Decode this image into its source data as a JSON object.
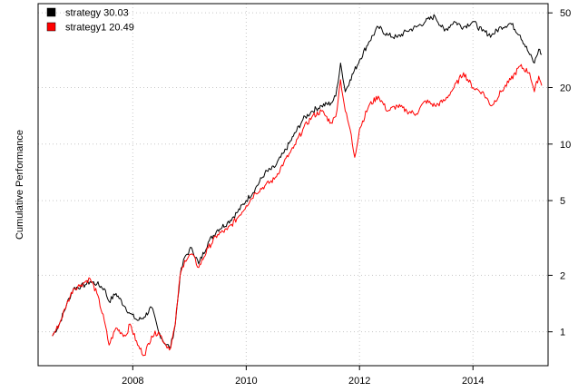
{
  "chart_data": {
    "type": "line",
    "title": "",
    "xlabel": "",
    "ylabel": "Cumulative Performance",
    "y_scale": "log",
    "xlim": [
      "2006-05-01",
      "2015-04-30"
    ],
    "ylim": [
      0.66,
      56
    ],
    "y_axis_side": "right",
    "grid": true,
    "legend_position": "top-left",
    "x_ticks": [
      {
        "date": "2008-01-01",
        "label": "2008"
      },
      {
        "date": "2010-01-01",
        "label": "2010"
      },
      {
        "date": "2012-01-01",
        "label": "2012"
      },
      {
        "date": "2014-01-01",
        "label": "2014"
      }
    ],
    "y_ticks": [
      {
        "value": 1,
        "label": "1"
      },
      {
        "value": 2,
        "label": "2"
      },
      {
        "value": 5,
        "label": "5"
      },
      {
        "value": 10,
        "label": "10"
      },
      {
        "value": 20,
        "label": "20"
      },
      {
        "value": 50,
        "label": "50"
      }
    ],
    "series": [
      {
        "name": "strategy",
        "legend_label": "strategy 30.03",
        "color": "#000000",
        "points": [
          [
            "2006-08-01",
            0.95
          ],
          [
            "2006-09-15",
            1.1
          ],
          [
            "2006-11-01",
            1.4
          ],
          [
            "2006-12-15",
            1.7
          ],
          [
            "2007-02-01",
            1.75
          ],
          [
            "2007-03-01",
            1.78
          ],
          [
            "2007-04-01",
            1.85
          ],
          [
            "2007-05-15",
            1.8
          ],
          [
            "2007-07-01",
            1.7
          ],
          [
            "2007-08-01",
            1.45
          ],
          [
            "2007-09-15",
            1.6
          ],
          [
            "2007-11-15",
            1.35
          ],
          [
            "2007-12-15",
            1.25
          ],
          [
            "2008-02-01",
            1.15
          ],
          [
            "2008-03-15",
            1.2
          ],
          [
            "2008-05-01",
            1.35
          ],
          [
            "2008-06-15",
            1.0
          ],
          [
            "2008-08-01",
            0.85
          ],
          [
            "2008-09-01",
            0.83
          ],
          [
            "2008-10-01",
            1.1
          ],
          [
            "2008-11-01",
            2.0
          ],
          [
            "2008-12-01",
            2.5
          ],
          [
            "2009-01-15",
            2.8
          ],
          [
            "2009-03-01",
            2.3
          ],
          [
            "2009-05-01",
            3.0
          ],
          [
            "2009-07-01",
            3.5
          ],
          [
            "2009-09-01",
            3.8
          ],
          [
            "2009-11-01",
            4.3
          ],
          [
            "2010-01-01",
            5.0
          ],
          [
            "2010-03-01",
            5.8
          ],
          [
            "2010-05-01",
            7.0
          ],
          [
            "2010-07-01",
            7.5
          ],
          [
            "2010-09-01",
            9.0
          ],
          [
            "2010-11-01",
            11.0
          ],
          [
            "2011-01-01",
            13.5
          ],
          [
            "2011-03-01",
            15.0
          ],
          [
            "2011-05-01",
            16.0
          ],
          [
            "2011-07-01",
            16.5
          ],
          [
            "2011-08-01",
            18.0
          ],
          [
            "2011-09-01",
            27.0
          ],
          [
            "2011-10-01",
            19.0
          ],
          [
            "2011-11-01",
            22.0
          ],
          [
            "2012-01-01",
            28.0
          ],
          [
            "2012-03-01",
            35.0
          ],
          [
            "2012-05-01",
            42.0
          ],
          [
            "2012-07-01",
            38.0
          ],
          [
            "2012-09-01",
            37.0
          ],
          [
            "2012-11-01",
            40.0
          ],
          [
            "2013-01-01",
            42.0
          ],
          [
            "2013-03-01",
            45.0
          ],
          [
            "2013-05-01",
            48.0
          ],
          [
            "2013-07-01",
            40.0
          ],
          [
            "2013-09-01",
            45.0
          ],
          [
            "2013-11-01",
            42.0
          ],
          [
            "2014-01-01",
            45.0
          ],
          [
            "2014-03-01",
            40.0
          ],
          [
            "2014-05-01",
            38.0
          ],
          [
            "2014-07-01",
            42.0
          ],
          [
            "2014-09-01",
            44.0
          ],
          [
            "2014-11-01",
            38.0
          ],
          [
            "2015-01-01",
            30.0
          ],
          [
            "2015-02-01",
            27.0
          ],
          [
            "2015-03-01",
            32.0
          ],
          [
            "2015-03-20",
            30.03
          ]
        ]
      },
      {
        "name": "strategy1",
        "legend_label": "strategy1 20.49",
        "color": "#ff0000",
        "points": [
          [
            "2006-08-01",
            0.95
          ],
          [
            "2006-09-15",
            1.1
          ],
          [
            "2006-11-01",
            1.4
          ],
          [
            "2006-12-15",
            1.7
          ],
          [
            "2007-02-01",
            1.78
          ],
          [
            "2007-03-01",
            1.85
          ],
          [
            "2007-04-01",
            1.92
          ],
          [
            "2007-05-15",
            1.6
          ],
          [
            "2007-07-01",
            1.15
          ],
          [
            "2007-08-01",
            0.85
          ],
          [
            "2007-09-15",
            1.05
          ],
          [
            "2007-11-15",
            0.95
          ],
          [
            "2007-12-15",
            1.1
          ],
          [
            "2008-02-01",
            0.85
          ],
          [
            "2008-03-15",
            0.75
          ],
          [
            "2008-05-01",
            0.95
          ],
          [
            "2008-06-15",
            1.0
          ],
          [
            "2008-08-01",
            0.85
          ],
          [
            "2008-09-01",
            0.82
          ],
          [
            "2008-10-01",
            1.1
          ],
          [
            "2008-11-01",
            2.0
          ],
          [
            "2008-12-01",
            2.4
          ],
          [
            "2009-01-15",
            2.6
          ],
          [
            "2009-03-01",
            2.2
          ],
          [
            "2009-05-01",
            2.8
          ],
          [
            "2009-07-01",
            3.3
          ],
          [
            "2009-09-01",
            3.5
          ],
          [
            "2009-11-01",
            4.0
          ],
          [
            "2010-01-01",
            4.7
          ],
          [
            "2010-03-01",
            5.5
          ],
          [
            "2010-05-01",
            6.0
          ],
          [
            "2010-07-01",
            6.5
          ],
          [
            "2010-09-01",
            8.0
          ],
          [
            "2010-11-01",
            9.5
          ],
          [
            "2011-01-01",
            12.0
          ],
          [
            "2011-03-01",
            14.0
          ],
          [
            "2011-05-01",
            15.0
          ],
          [
            "2011-07-01",
            13.0
          ],
          [
            "2011-08-01",
            14.0
          ],
          [
            "2011-09-01",
            22.0
          ],
          [
            "2011-10-01",
            15.0
          ],
          [
            "2011-11-01",
            12.0
          ],
          [
            "2011-12-01",
            8.5
          ],
          [
            "2012-01-01",
            12.0
          ],
          [
            "2012-03-01",
            16.0
          ],
          [
            "2012-05-01",
            18.0
          ],
          [
            "2012-07-01",
            15.0
          ],
          [
            "2012-09-01",
            16.0
          ],
          [
            "2012-11-01",
            15.0
          ],
          [
            "2013-01-01",
            14.5
          ],
          [
            "2013-03-01",
            17.0
          ],
          [
            "2013-05-01",
            16.0
          ],
          [
            "2013-07-01",
            17.0
          ],
          [
            "2013-09-01",
            20.0
          ],
          [
            "2013-11-01",
            24.0
          ],
          [
            "2014-01-01",
            20.0
          ],
          [
            "2014-03-01",
            19.0
          ],
          [
            "2014-05-01",
            16.0
          ],
          [
            "2014-07-01",
            19.0
          ],
          [
            "2014-09-01",
            22.0
          ],
          [
            "2014-11-01",
            26.0
          ],
          [
            "2015-01-01",
            24.0
          ],
          [
            "2015-02-01",
            19.0
          ],
          [
            "2015-03-01",
            23.0
          ],
          [
            "2015-03-20",
            20.49
          ]
        ]
      }
    ]
  }
}
